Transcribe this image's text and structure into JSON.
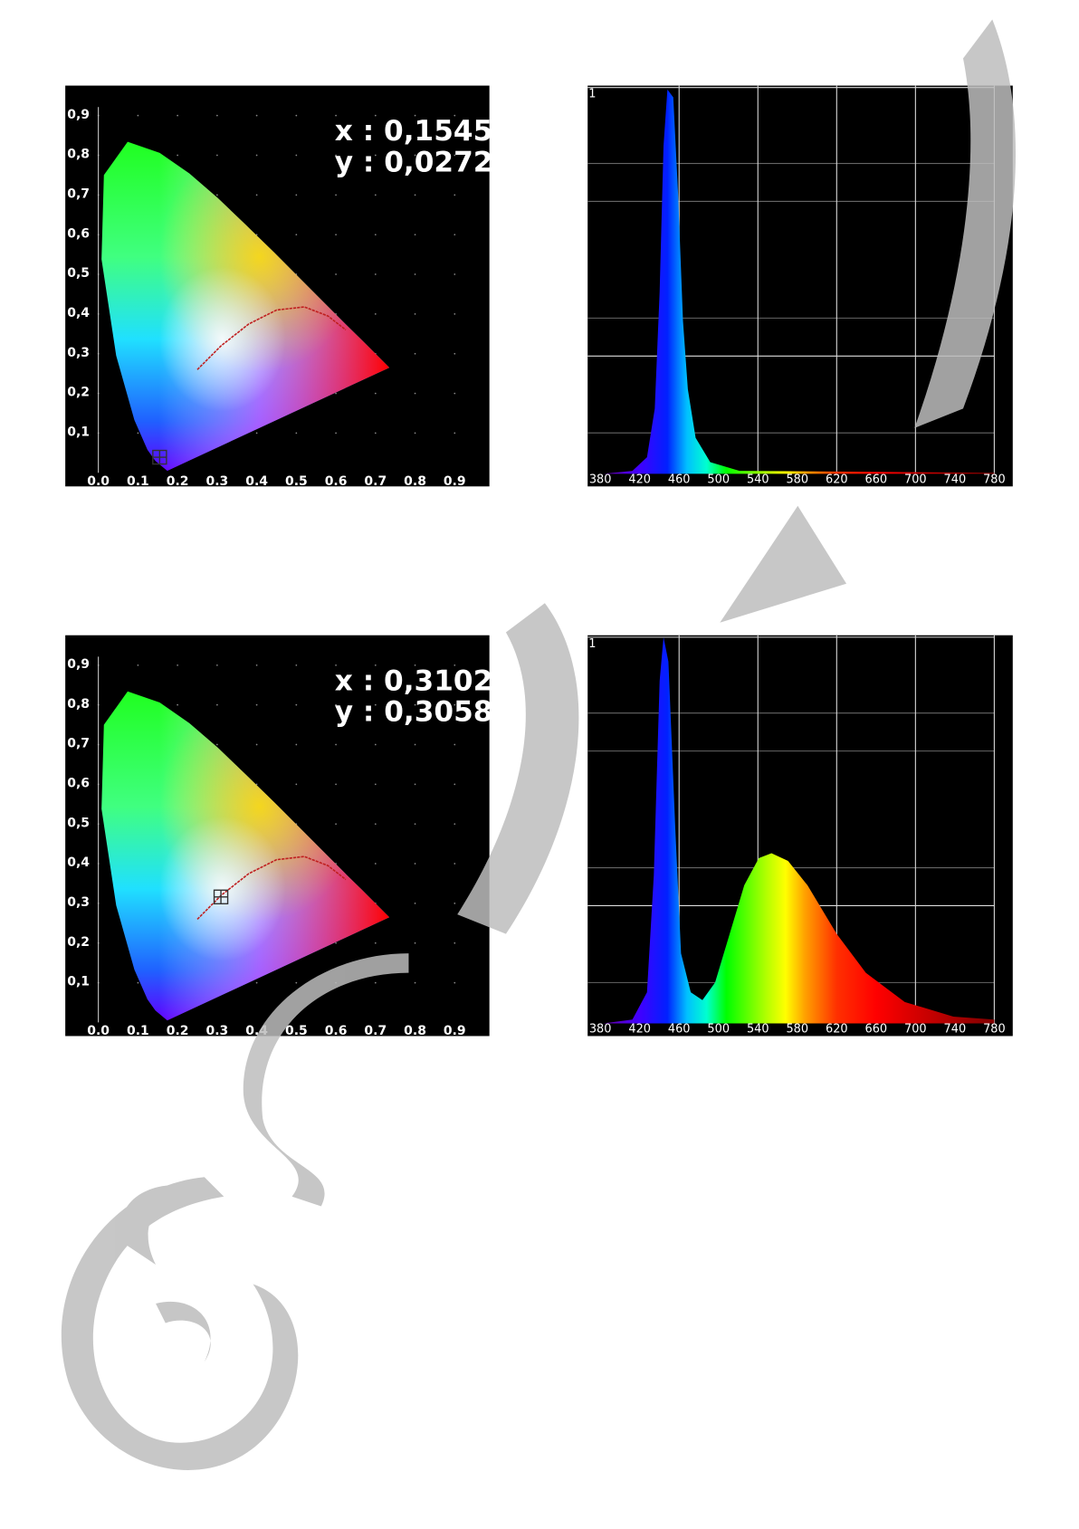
{
  "figures": [
    {
      "chromaticity": {
        "y_ticks": [
          "0,9",
          "0,8",
          "0,7",
          "0,6",
          "0,5",
          "0,4",
          "0,3",
          "0,2",
          "0,1"
        ],
        "x_ticks": [
          "0.0",
          "0.1",
          "0.2",
          "0.3",
          "0.4",
          "0.5",
          "0.6",
          "0.7",
          "0.8",
          "0.9"
        ],
        "coordinates": [
          "x : 0,1545",
          "y : 0,0272"
        ]
      },
      "spectrum": {
        "y_label": "1",
        "x_ticks": [
          "380",
          "420",
          "460",
          "500",
          "540",
          "580",
          "620",
          "660",
          "700",
          "740",
          "780"
        ]
      }
    },
    {
      "chromaticity": {
        "y_ticks": [
          "0,9",
          "0,8",
          "0,7",
          "0,6",
          "0,5",
          "0,4",
          "0,3",
          "0,2",
          "0,1"
        ],
        "x_ticks": [
          "0.0",
          "0.1",
          "0.2",
          "0.3",
          "0.4",
          "0.5",
          "0.6",
          "0.7",
          "0.8",
          "0.9"
        ],
        "coordinates": [
          "x : 0,3102",
          "y : 0,3058"
        ]
      },
      "spectrum": {
        "y_label": "1",
        "x_ticks": [
          "380",
          "420",
          "460",
          "500",
          "540",
          "580",
          "620",
          "660",
          "700",
          "740",
          "780"
        ]
      }
    }
  ]
}
